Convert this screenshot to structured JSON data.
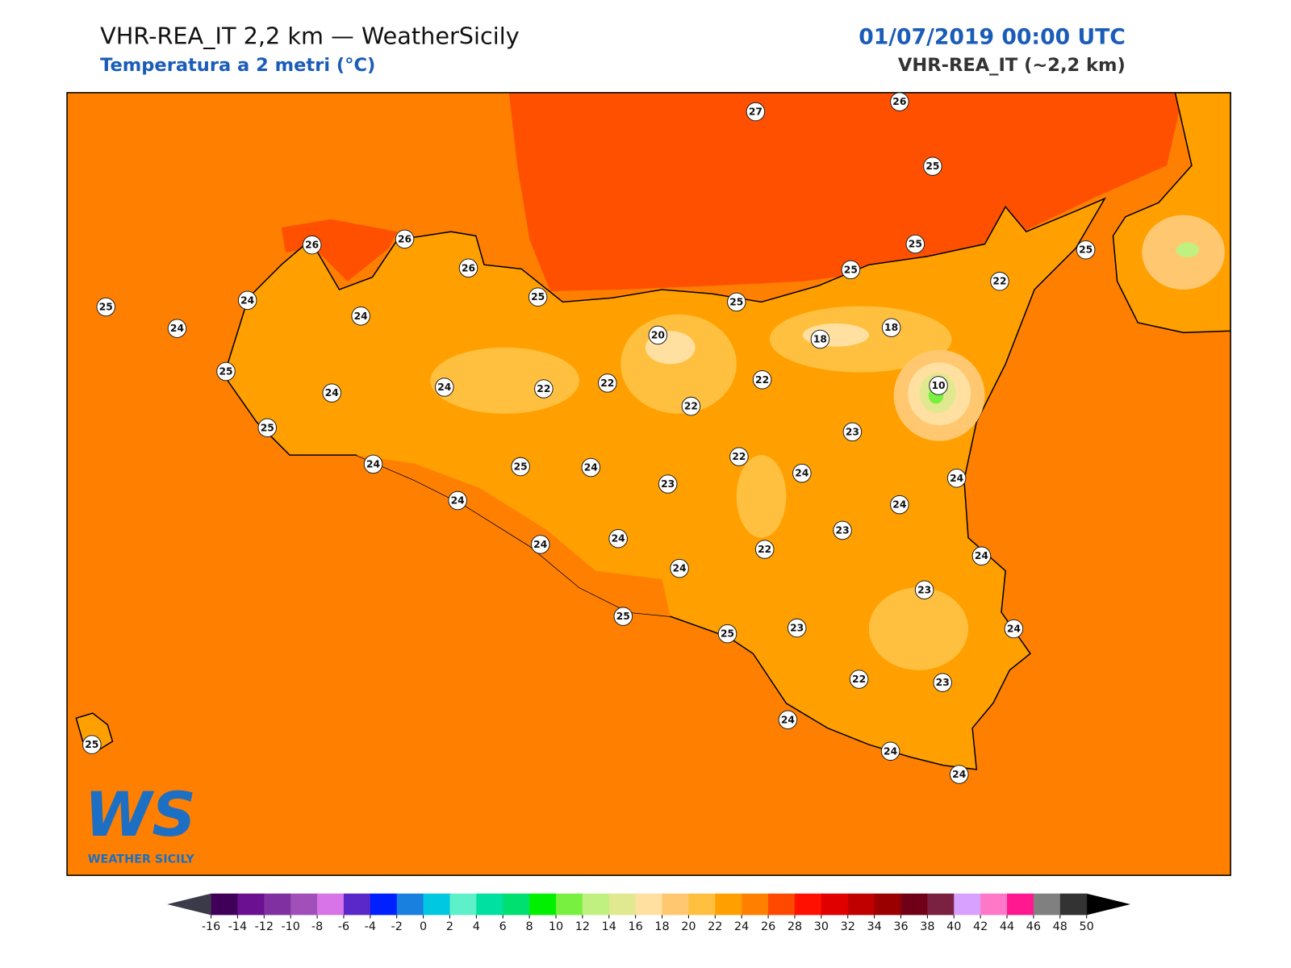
{
  "header": {
    "title": "VHR-REA_IT 2,2 km — WeatherSicily",
    "subtitle": "Temperatura a 2 metri (°C)",
    "datetime": "01/07/2019 00:00 UTC",
    "model": "VHR-REA_IT (~2,2 km)"
  },
  "logo": {
    "mark": "WS",
    "text": "WEATHER SICILY"
  },
  "stations": [
    27,
    26,
    25,
    26,
    26,
    26,
    25,
    25,
    24,
    24,
    24,
    25,
    24,
    25,
    24,
    22,
    22,
    20,
    22,
    25,
    25,
    25,
    25,
    22,
    18,
    18,
    10,
    22,
    23,
    22,
    24,
    24,
    24,
    23,
    22,
    24,
    23,
    24,
    23,
    25,
    22,
    23,
    24,
    24,
    24,
    24,
    25,
    24,
    23,
    24,
    24,
    24,
    24,
    25,
    25
  ],
  "colorbar": {
    "ticks": [
      -16,
      -14,
      -12,
      -10,
      -8,
      -6,
      -4,
      -2,
      0,
      2,
      4,
      6,
      8,
      10,
      12,
      14,
      16,
      18,
      20,
      22,
      24,
      26,
      28,
      30,
      32,
      34,
      36,
      38,
      40,
      42,
      44,
      46,
      48,
      50
    ],
    "colors": [
      "#40005a",
      "#6a1090",
      "#8030a0",
      "#a050b8",
      "#d873e8",
      "#5a28c8",
      "#0020ff",
      "#1a80e0",
      "#00c8e0",
      "#5ef0c8",
      "#00e0a0",
      "#00e070",
      "#00f000",
      "#78f040",
      "#c0f080",
      "#e0e890",
      "#ffe0a0",
      "#ffc870",
      "#ffc040",
      "#ffa000",
      "#ff8000",
      "#ff4800",
      "#ff1000",
      "#e00000",
      "#c00000",
      "#9a0000",
      "#700018",
      "#7a2040",
      "#d8a0ff",
      "#ff78c8",
      "#ff1890",
      "#808080",
      "#333333"
    ],
    "under": "#3a3a48",
    "over": "#000000"
  }
}
